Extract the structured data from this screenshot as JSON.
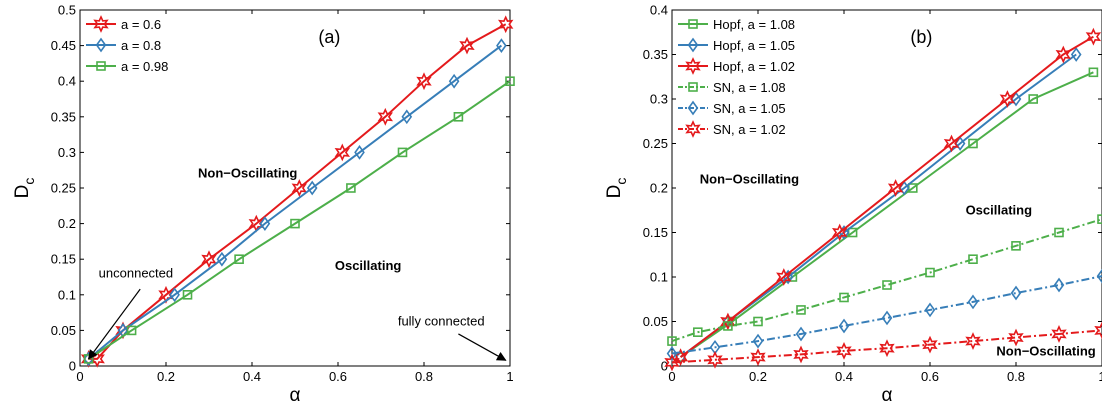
{
  "chart_data": [
    {
      "type": "line",
      "panel_label": "(a)",
      "xlabel": "α",
      "ylabel": "D",
      "ylabel_sub": "c",
      "xlim": [
        0,
        1
      ],
      "ylim": [
        0,
        0.5
      ],
      "grid": false,
      "legend_placement": "top-left",
      "x_ticks": [
        0,
        0.2,
        0.4,
        0.6,
        0.8,
        1
      ],
      "x_tick_labels": [
        "0",
        "0.2",
        "0.4",
        "0.6",
        "0.8",
        "1"
      ],
      "y_ticks": [
        0,
        0.05,
        0.1,
        0.15,
        0.2,
        0.25,
        0.3,
        0.35,
        0.4,
        0.45,
        0.5
      ],
      "y_tick_labels": [
        "0",
        "0.05",
        "0.1",
        "0.15",
        "0.2",
        "0.25",
        "0.3",
        "0.35",
        "0.4",
        "0.45",
        "0.5"
      ],
      "series": [
        {
          "name": "a = 0.6",
          "color": "#e41a1c",
          "marker": "hexagram",
          "dash": "solid",
          "x": [
            0.02,
            0.04,
            0.1,
            0.2,
            0.3,
            0.41,
            0.51,
            0.61,
            0.71,
            0.8,
            0.9,
            0.99
          ],
          "y": [
            0.01,
            0.01,
            0.05,
            0.1,
            0.15,
            0.2,
            0.25,
            0.3,
            0.35,
            0.4,
            0.45,
            0.48
          ]
        },
        {
          "name": "a = 0.8",
          "color": "#377eb8",
          "marker": "diamond",
          "dash": "solid",
          "x": [
            0.02,
            0.1,
            0.22,
            0.33,
            0.43,
            0.54,
            0.65,
            0.76,
            0.87,
            0.98
          ],
          "y": [
            0.01,
            0.05,
            0.1,
            0.15,
            0.2,
            0.25,
            0.3,
            0.35,
            0.4,
            0.45
          ]
        },
        {
          "name": "a = 0.98",
          "color": "#4daf4a",
          "marker": "square",
          "dash": "solid",
          "x": [
            0.02,
            0.12,
            0.25,
            0.37,
            0.5,
            0.63,
            0.75,
            0.88,
            1.0
          ],
          "y": [
            0.01,
            0.05,
            0.1,
            0.15,
            0.2,
            0.25,
            0.3,
            0.35,
            0.4
          ]
        }
      ],
      "annotations": [
        {
          "text": "Non−Oscillating",
          "bold": true,
          "x": 0.39,
          "y": 0.265
        },
        {
          "text": "Oscillating",
          "bold": true,
          "x": 0.67,
          "y": 0.135
        },
        {
          "text": "unconnected",
          "bold": false,
          "x": 0.13,
          "y": 0.124
        },
        {
          "text": "fully connected",
          "bold": false,
          "x": 0.84,
          "y": 0.057
        }
      ],
      "arrows": [
        {
          "from": [
            0.14,
            0.108
          ],
          "to": [
            0.02,
            0.01
          ]
        },
        {
          "from": [
            0.88,
            0.045
          ],
          "to": [
            0.99,
            0.008
          ]
        }
      ]
    },
    {
      "type": "line",
      "panel_label": "(b)",
      "xlabel": "α",
      "ylabel": "D",
      "ylabel_sub": "c",
      "xlim": [
        0,
        1
      ],
      "ylim": [
        0,
        0.4
      ],
      "grid": false,
      "legend_placement": "top-left",
      "x_ticks": [
        0,
        0.2,
        0.4,
        0.6,
        0.8,
        1
      ],
      "x_tick_labels": [
        "0",
        "0.2",
        "0.4",
        "0.6",
        "0.8",
        "1"
      ],
      "y_ticks": [
        0,
        0.05,
        0.1,
        0.15,
        0.2,
        0.25,
        0.3,
        0.35,
        0.4
      ],
      "y_tick_labels": [
        "0",
        "0.05",
        "0.1",
        "0.15",
        "0.2",
        "0.25",
        "0.3",
        "0.35",
        "0.4"
      ],
      "series": [
        {
          "name": "Hopf, a = 1.08",
          "color": "#4daf4a",
          "marker": "square",
          "dash": "solid",
          "x": [
            0.02,
            0.14,
            0.28,
            0.42,
            0.56,
            0.7,
            0.84,
            0.98
          ],
          "y": [
            0.01,
            0.05,
            0.1,
            0.15,
            0.2,
            0.25,
            0.3,
            0.33
          ]
        },
        {
          "name": "Hopf, a = 1.05",
          "color": "#377eb8",
          "marker": "diamond",
          "dash": "solid",
          "x": [
            0.02,
            0.13,
            0.27,
            0.4,
            0.54,
            0.67,
            0.8,
            0.94
          ],
          "y": [
            0.01,
            0.05,
            0.1,
            0.15,
            0.2,
            0.25,
            0.3,
            0.35
          ]
        },
        {
          "name": "Hopf, a = 1.02",
          "color": "#e41a1c",
          "marker": "hexagram",
          "dash": "solid",
          "x": [
            0.02,
            0.13,
            0.26,
            0.39,
            0.52,
            0.65,
            0.78,
            0.91,
            0.98
          ],
          "y": [
            0.01,
            0.05,
            0.1,
            0.15,
            0.2,
            0.25,
            0.3,
            0.35,
            0.37
          ]
        },
        {
          "name": "SN, a = 1.08",
          "color": "#4daf4a",
          "marker": "square",
          "dash": "dashdot",
          "x": [
            0.0,
            0.06,
            0.13,
            0.2,
            0.3,
            0.4,
            0.5,
            0.6,
            0.7,
            0.8,
            0.9,
            1.0
          ],
          "y": [
            0.028,
            0.038,
            0.045,
            0.05,
            0.063,
            0.077,
            0.091,
            0.105,
            0.12,
            0.135,
            0.15,
            0.165
          ]
        },
        {
          "name": "SN, a = 1.05",
          "color": "#377eb8",
          "marker": "diamond",
          "dash": "dashdot",
          "x": [
            0.0,
            0.1,
            0.2,
            0.3,
            0.4,
            0.5,
            0.6,
            0.7,
            0.8,
            0.9,
            1.0
          ],
          "y": [
            0.014,
            0.021,
            0.028,
            0.036,
            0.045,
            0.054,
            0.063,
            0.072,
            0.082,
            0.091,
            0.101
          ]
        },
        {
          "name": "SN, a = 1.02",
          "color": "#e41a1c",
          "marker": "hexagram",
          "dash": "dashdot",
          "x": [
            0.0,
            0.1,
            0.2,
            0.3,
            0.4,
            0.5,
            0.6,
            0.7,
            0.8,
            0.9,
            1.0
          ],
          "y": [
            0.004,
            0.007,
            0.01,
            0.013,
            0.017,
            0.02,
            0.024,
            0.028,
            0.032,
            0.036,
            0.04
          ]
        }
      ],
      "annotations": [
        {
          "text": "Non−Oscillating",
          "bold": true,
          "x": 0.18,
          "y": 0.205
        },
        {
          "text": "Oscillating",
          "bold": true,
          "x": 0.76,
          "y": 0.17
        },
        {
          "text": "Non−Oscillating",
          "bold": true,
          "x": 0.87,
          "y": 0.012
        }
      ],
      "arrows": []
    }
  ]
}
